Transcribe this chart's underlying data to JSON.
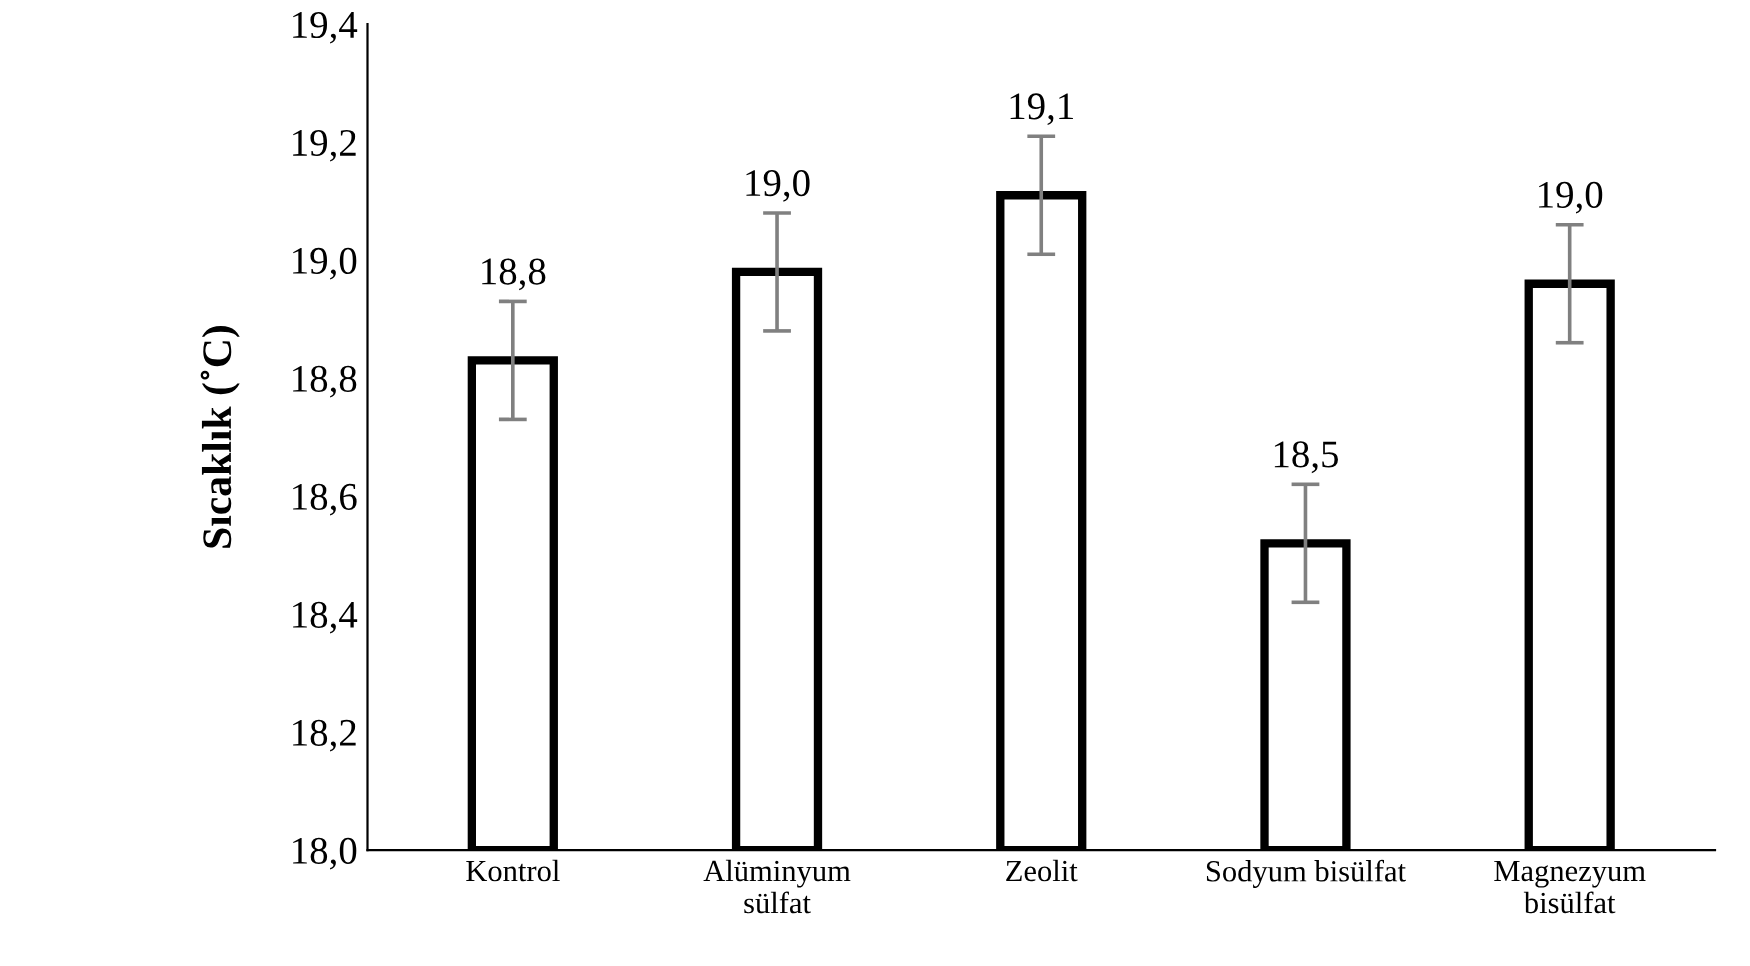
{
  "chart_data": {
    "type": "bar",
    "ylabel": "Sıcaklık (˚C)",
    "categories": [
      "Kontrol",
      "Alüminyum\nsülfat",
      "Zeolit",
      "Sodyum bisülfat",
      "Magnezyum\nbisülfat"
    ],
    "values": [
      18.83,
      18.98,
      19.11,
      18.52,
      18.96
    ],
    "value_labels": [
      "18,8",
      "19,0",
      "19,1",
      "18,5",
      "19,0"
    ],
    "errors": [
      0.1,
      0.1,
      0.1,
      0.1,
      0.1
    ],
    "color": "#ffffff",
    "ylim": [
      18.0,
      19.4
    ],
    "yticks": [
      {
        "value": 18.0,
        "label": "18,0"
      },
      {
        "value": 18.2,
        "label": "18,2"
      },
      {
        "value": 18.4,
        "label": "18,4"
      },
      {
        "value": 18.6,
        "label": "18,6"
      },
      {
        "value": 18.8,
        "label": "18,8"
      },
      {
        "value": 19.0,
        "label": "19,0"
      },
      {
        "value": 19.2,
        "label": "19,2"
      },
      {
        "value": 19.4,
        "label": "19,4"
      }
    ],
    "grid": false,
    "legend": false
  }
}
